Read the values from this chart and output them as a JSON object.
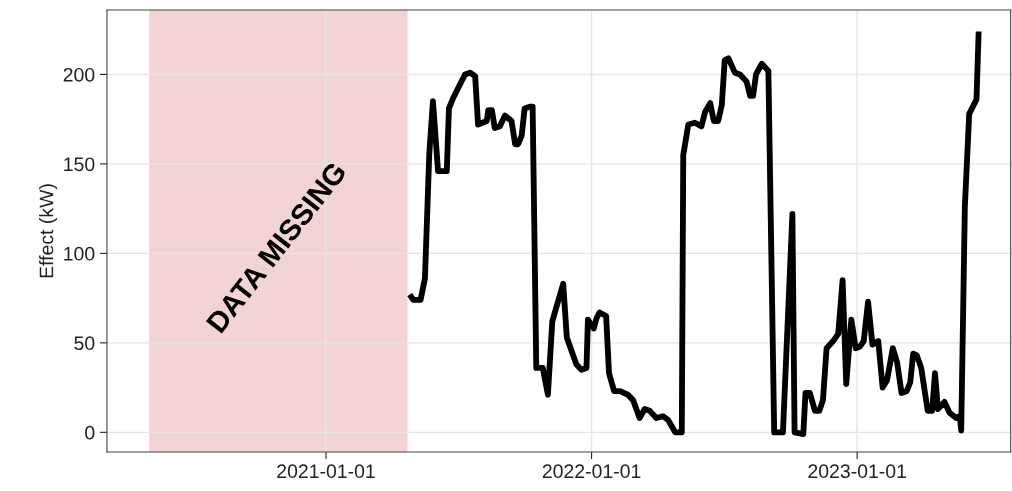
{
  "chart_data": {
    "type": "line",
    "ylabel": "Effect (kW)",
    "x": [
      "2021-04-26",
      "2021-05-01",
      "2021-05-11",
      "2021-05-17",
      "2021-05-23",
      "2021-05-28",
      "2021-06-04",
      "2021-06-16",
      "2021-06-19",
      "2021-06-25",
      "2021-07-11",
      "2021-07-18",
      "2021-07-25",
      "2021-07-29",
      "2021-08-10",
      "2021-08-12",
      "2021-08-17",
      "2021-08-21",
      "2021-08-28",
      "2021-09-04",
      "2021-09-13",
      "2021-09-18",
      "2021-09-22",
      "2021-09-27",
      "2021-10-01",
      "2021-10-08",
      "2021-10-12",
      "2021-10-17",
      "2021-10-26",
      "2021-11-02",
      "2021-11-08",
      "2021-11-23",
      "2021-11-28",
      "2021-12-11",
      "2021-12-18",
      "2021-12-25",
      "2021-12-27",
      "2022-01-04",
      "2022-01-08",
      "2022-01-12",
      "2022-01-21",
      "2022-01-25",
      "2022-02-01",
      "2022-02-09",
      "2022-02-20",
      "2022-02-27",
      "2022-03-08",
      "2022-03-15",
      "2022-03-22",
      "2022-03-31",
      "2022-04-09",
      "2022-04-16",
      "2022-04-26",
      "2022-05-05",
      "2022-05-07",
      "2022-05-14",
      "2022-05-23",
      "2022-06-01",
      "2022-06-06",
      "2022-06-13",
      "2022-06-18",
      "2022-06-24",
      "2022-06-29",
      "2022-07-03",
      "2022-07-08",
      "2022-07-17",
      "2022-07-24",
      "2022-08-02",
      "2022-08-07",
      "2022-08-11",
      "2022-08-15",
      "2022-08-23",
      "2022-09-01",
      "2022-09-09",
      "2022-09-21",
      "2022-10-04",
      "2022-10-07",
      "2022-10-19",
      "2022-10-22",
      "2022-10-28",
      "2022-11-04",
      "2022-11-10",
      "2022-11-15",
      "2022-11-20",
      "2022-11-29",
      "2022-12-06",
      "2022-12-12",
      "2022-12-17",
      "2022-12-24",
      "2022-12-30",
      "2023-01-05",
      "2023-01-10",
      "2023-01-16",
      "2023-01-22",
      "2023-01-30",
      "2023-02-05",
      "2023-02-11",
      "2023-02-19",
      "2023-02-25",
      "2023-03-03",
      "2023-03-10",
      "2023-03-15",
      "2023-03-19",
      "2023-03-24",
      "2023-03-30",
      "2023-04-08",
      "2023-04-14",
      "2023-04-18",
      "2023-04-22",
      "2023-05-01",
      "2023-05-08",
      "2023-05-17",
      "2023-05-22",
      "2023-05-24",
      "2023-05-29",
      "2023-06-04",
      "2023-06-14",
      "2023-06-17"
    ],
    "series": [
      {
        "color": "#000000",
        "values": [
          77,
          74,
          74,
          86,
          156,
          185,
          146,
          146,
          181,
          187,
          200,
          201,
          199,
          172,
          174,
          180,
          180,
          170,
          171,
          177,
          174,
          161,
          161,
          166,
          181,
          182,
          182,
          36,
          36,
          21,
          62,
          83,
          53,
          38,
          35,
          36,
          63,
          58,
          64,
          67,
          65,
          33,
          23,
          23,
          21,
          18,
          8,
          13,
          12,
          8,
          9,
          7,
          0,
          0,
          155,
          172,
          173,
          171,
          179,
          184,
          174,
          174,
          183,
          208,
          209,
          201,
          200,
          196,
          188,
          188,
          200,
          206,
          202,
          0,
          0,
          122,
          0,
          -1,
          22,
          22,
          12,
          12,
          18,
          47,
          51,
          55,
          85,
          27,
          63,
          47,
          48,
          51,
          73,
          49,
          51,
          25,
          29,
          47,
          39,
          22,
          23,
          28,
          44,
          43,
          36,
          12,
          12,
          33,
          13,
          17,
          11,
          8,
          9,
          1,
          126,
          178,
          186,
          224
        ]
      }
    ],
    "xlim": [
      "2020-03-06",
      "2023-07-31"
    ],
    "ylim": [
      -11,
      236
    ],
    "xticks": [
      "2021-01-01",
      "2022-01-01",
      "2023-01-01"
    ],
    "yticks": [
      0,
      50,
      100,
      150,
      200
    ],
    "bands": [
      {
        "axis": "x",
        "from": "2020-05-03",
        "to": "2021-04-23",
        "label": "DATA MISSING",
        "color": "#f2d4d4"
      }
    ],
    "grid": true,
    "line_style": "solid",
    "marker": "none"
  }
}
